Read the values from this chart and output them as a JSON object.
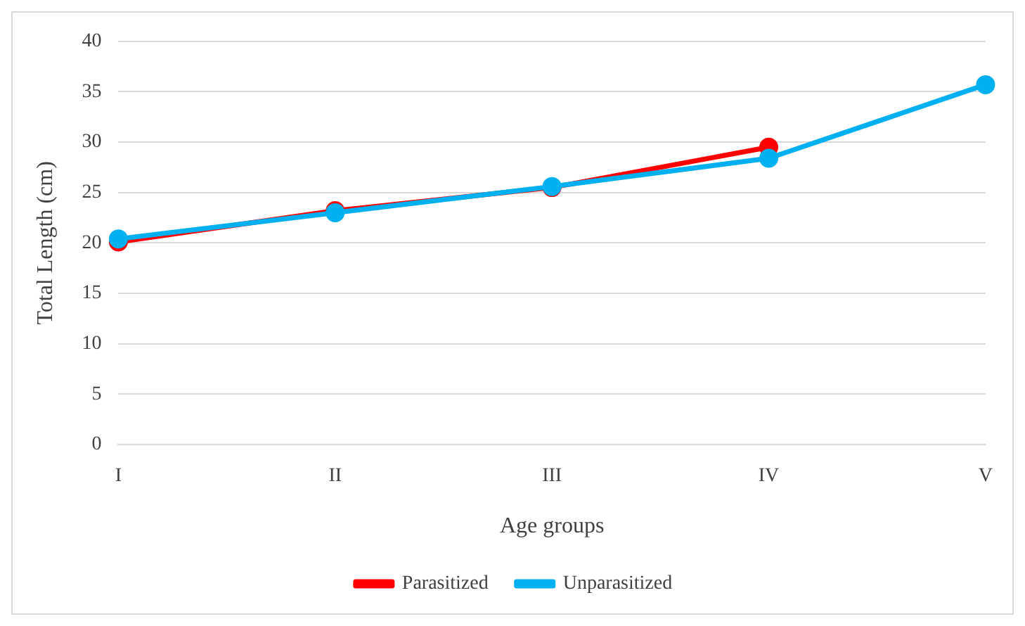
{
  "chart_data": {
    "type": "line",
    "xlabel": "Age groups",
    "ylabel": "Total Length (cm)",
    "categories": [
      "I",
      "II",
      "III",
      "IV",
      "V"
    ],
    "series": [
      {
        "name": "Parasitized",
        "color": "#ff0000",
        "values": [
          20.1,
          23.2,
          25.5,
          29.5,
          null
        ]
      },
      {
        "name": "Unparasitized",
        "color": "#00b0f0",
        "values": [
          20.4,
          23.0,
          25.6,
          28.4,
          35.7
        ]
      }
    ],
    "ylim": [
      0,
      40
    ],
    "yticks": [
      0,
      5,
      10,
      15,
      20,
      25,
      30,
      35,
      40
    ],
    "grid": "y",
    "legend": "bottom",
    "marker": "circle",
    "line_style": "solid"
  }
}
